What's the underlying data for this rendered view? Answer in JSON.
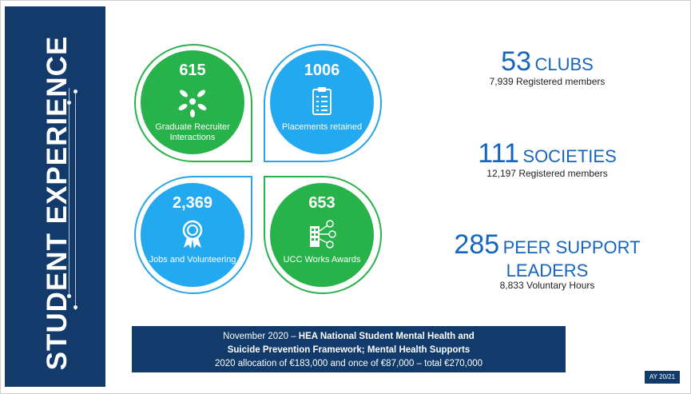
{
  "sidebar": {
    "title": "STUDENT EXPERIENCE"
  },
  "tiles": [
    {
      "number": "615",
      "label": "Graduate Recruiter Interactions",
      "icon": "hands-icon"
    },
    {
      "number": "1006",
      "label": "Placements retained",
      "icon": "clipboard-icon"
    },
    {
      "number": "2,369",
      "label": "Jobs and Volunteering",
      "icon": "award-ribbon-icon"
    },
    {
      "number": "653",
      "label": "UCC Works Awards",
      "icon": "building-network-icon"
    }
  ],
  "stats": [
    {
      "number": "53",
      "label": "CLUBS",
      "sub": "7,939 Registered members"
    },
    {
      "number": "111",
      "label": "SOCIETIES",
      "sub": "12,197 Registered members"
    },
    {
      "number": "285",
      "label": "PEER SUPPORT LEADERS",
      "sub": "8,833 Voluntary Hours"
    }
  ],
  "banner": {
    "line1_prefix": "November 2020 – ",
    "line1_bold": "HEA National Student Mental Health and",
    "line2_bold": "Suicide Prevention Framework; Mental Health Supports",
    "line3": "2020 allocation of €183,000 and once of €87,000 – total €270,000"
  },
  "badge": "AY 20/21",
  "colors": {
    "navy": "#123a6b",
    "green": "#27b34a",
    "blue": "#22a9f0",
    "stat_blue": "#1565c0"
  }
}
